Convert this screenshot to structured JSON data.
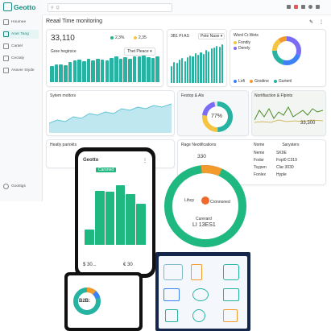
{
  "brand": {
    "name": "Geotto"
  },
  "search": {
    "placeholder": "Q"
  },
  "sidebar": {
    "items": [
      {
        "label": "Houmee"
      },
      {
        "label": "Aner Tang"
      },
      {
        "label": "Cantel"
      },
      {
        "label": "Cectaly"
      },
      {
        "label": "Asover Styde"
      }
    ],
    "footer": "Goottigs"
  },
  "header": {
    "title": "Reaal Time monitoring"
  },
  "kpi": {
    "value": "33,110",
    "chip1": "2,3%",
    "chip2": "2,35",
    "chart_title": "Gree hegiroce",
    "filter": "Thet Pleace"
  },
  "card2": {
    "title": "3B1 PI AS",
    "filter": "Pete Nase"
  },
  "worldcard": {
    "title": "Word Cr.Wets",
    "legend": [
      "Fondiy",
      "Derely"
    ],
    "bottom": [
      "Lofi",
      "Grodine",
      "Gurtenl"
    ]
  },
  "system": {
    "title": "Sytem moltors"
  },
  "perf": {
    "title": "Festop & Als",
    "value": "77%"
  },
  "notif": {
    "title": "Nortifiaction & Flpints",
    "value": "33,300"
  },
  "health": {
    "title": "Heatly pariokts"
  },
  "regions": {
    "title": "Rage Neotifications",
    "value": "330",
    "table_head": [
      "Nome",
      "Sarysters"
    ],
    "rows": [
      {
        "name": "Neme",
        "status": "SK9E"
      },
      {
        "name": "Fodsr",
        "status": "Fopl0 C319"
      },
      {
        "name": "Tsypen",
        "status": "Clar 3030"
      },
      {
        "name": "Fonlex",
        "status": "Hyple"
      }
    ]
  },
  "phone": {
    "brand": "Geotto",
    "chip": "Caroned",
    "stat1": "$ 30...",
    "stat2": "€ 30"
  },
  "gauge": {
    "label": "Lihcp",
    "sublabel": "Cronnoned",
    "value_label": "Curerard",
    "value": "LI 13ES1"
  },
  "tablet": {
    "value": "B2B:"
  },
  "colors": {
    "teal": "#27b3a1",
    "green": "#1fb880",
    "orange": "#f39a2d",
    "purple": "#7b6cf6",
    "blue": "#3c82f6",
    "yellow": "#f5c542"
  },
  "chart_data": [
    {
      "type": "bar",
      "values": [
        55,
        60,
        62,
        58,
        70,
        74,
        78,
        72,
        80,
        76,
        82,
        78,
        75,
        84,
        88,
        82,
        86,
        80,
        90,
        88,
        92,
        86,
        84,
        90
      ]
    },
    {
      "type": "bar",
      "values": [
        40,
        48,
        46,
        55,
        58,
        50,
        60,
        64,
        62,
        70,
        66,
        72,
        68,
        76,
        74,
        80,
        82,
        86,
        84,
        90
      ]
    },
    {
      "type": "pie",
      "values": [
        30,
        25,
        20,
        15,
        10
      ]
    },
    {
      "type": "bar",
      "values": [
        14,
        50,
        49,
        55,
        47,
        38
      ]
    }
  ]
}
